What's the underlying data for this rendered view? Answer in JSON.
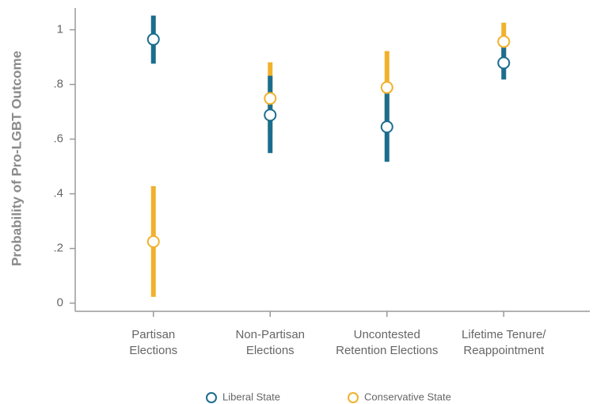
{
  "chart_data": {
    "type": "errorbar",
    "y_label": "Probability of Pro-LGBT Outcome",
    "categories": [
      [
        "Partisan",
        "Elections"
      ],
      [
        "Non-Partisan",
        "Elections"
      ],
      [
        "Uncontested",
        "Retention Elections"
      ],
      [
        "Lifetime Tenure/",
        "Reappointment"
      ]
    ],
    "series": [
      {
        "name": "Liberal State",
        "color": "#1b6d8e",
        "values": [
          0.965,
          0.688,
          0.645,
          0.879
        ],
        "lower": [
          0.876,
          0.549,
          0.517,
          0.818
        ],
        "upper": [
          1.052,
          0.832,
          0.769,
          0.94
        ]
      },
      {
        "name": "Conservative State",
        "color": "#f1b12c",
        "values": [
          0.225,
          0.749,
          0.789,
          0.957
        ],
        "lower": [
          0.023,
          0.62,
          0.66,
          0.9
        ],
        "upper": [
          0.428,
          0.881,
          0.922,
          1.026
        ]
      }
    ],
    "ylim": [
      -0.03,
      1.08
    ],
    "yticks": [
      0,
      {
        "value": 0.2,
        "label": ".2"
      },
      {
        "value": 0.4,
        "label": ".4"
      },
      {
        "value": 0.6,
        "label": ".6"
      },
      {
        "value": 0.8,
        "label": ".8"
      },
      1
    ],
    "legend": "bottom"
  }
}
